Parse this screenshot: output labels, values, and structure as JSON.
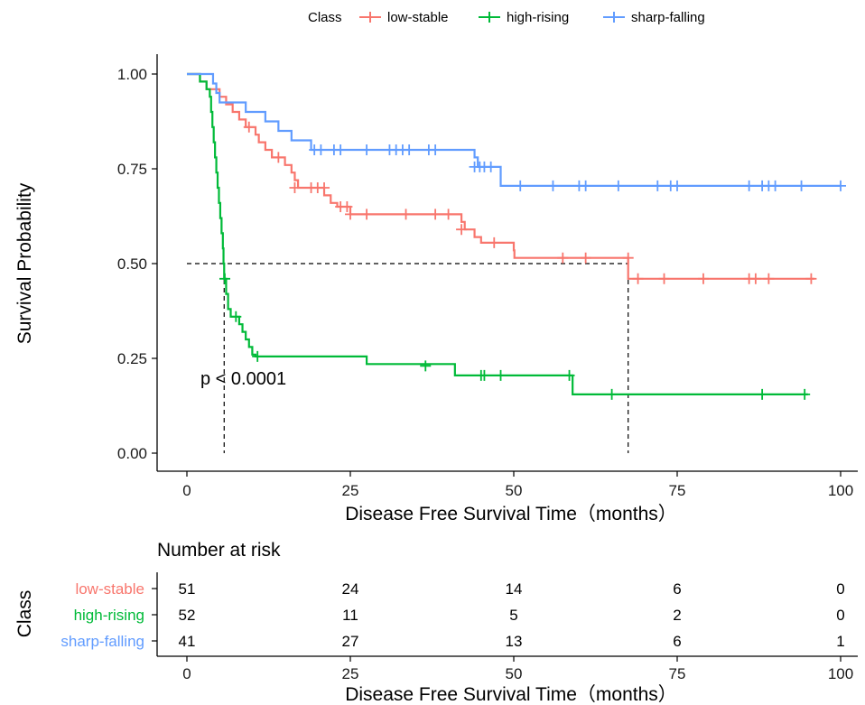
{
  "chart_data": {
    "type": "line",
    "subtype": "kaplan-meier",
    "legend": {
      "title": "Class",
      "position": "top",
      "entries": [
        "low-stable",
        "high-rising",
        "sharp-falling"
      ]
    },
    "xlabel": "Disease Free Survival Time（months）",
    "ylabel": "Survival Probability",
    "xlim": [
      0,
      100
    ],
    "ylim": [
      0,
      1
    ],
    "x_ticks": [
      "0",
      "25",
      "50",
      "75",
      "100"
    ],
    "y_ticks": [
      "0.00",
      "0.25",
      "0.50",
      "0.75",
      "1.00"
    ],
    "annotation": "p < 0.0001",
    "median_line": {
      "y": 0.5,
      "x_high_rising": 5.7,
      "x_low_stable": 67.5
    },
    "series": [
      {
        "name": "low-stable",
        "color": "#F8766D",
        "steps": [
          [
            0,
            1.0
          ],
          [
            2,
            0.98
          ],
          [
            3,
            0.96
          ],
          [
            5,
            0.94
          ],
          [
            6,
            0.92
          ],
          [
            7,
            0.9
          ],
          [
            8,
            0.88
          ],
          [
            9,
            0.86
          ],
          [
            10.5,
            0.84
          ],
          [
            11,
            0.82
          ],
          [
            12,
            0.8
          ],
          [
            13,
            0.78
          ],
          [
            15,
            0.76
          ],
          [
            16,
            0.74
          ],
          [
            16.5,
            0.72
          ],
          [
            17,
            0.7
          ],
          [
            21,
            0.68
          ],
          [
            22,
            0.66
          ],
          [
            23,
            0.65
          ],
          [
            25,
            0.63
          ],
          [
            42,
            0.61
          ],
          [
            42.5,
            0.59
          ],
          [
            44,
            0.57
          ],
          [
            45,
            0.555
          ],
          [
            50,
            0.535
          ],
          [
            50.1,
            0.515
          ],
          [
            67.5,
            0.46
          ],
          [
            96,
            0.46
          ]
        ],
        "censored": [
          [
            9.5,
            0.86
          ],
          [
            14,
            0.78
          ],
          [
            16.5,
            0.7
          ],
          [
            19,
            0.7
          ],
          [
            20,
            0.7
          ],
          [
            21,
            0.7
          ],
          [
            23.5,
            0.65
          ],
          [
            24.5,
            0.65
          ],
          [
            25,
            0.63
          ],
          [
            27.5,
            0.63
          ],
          [
            33.5,
            0.63
          ],
          [
            38,
            0.63
          ],
          [
            40,
            0.63
          ],
          [
            42,
            0.59
          ],
          [
            47,
            0.555
          ],
          [
            57.5,
            0.515
          ],
          [
            61,
            0.515
          ],
          [
            67.5,
            0.515
          ],
          [
            69,
            0.46
          ],
          [
            73,
            0.46
          ],
          [
            79,
            0.46
          ],
          [
            86,
            0.46
          ],
          [
            87,
            0.46
          ],
          [
            89,
            0.46
          ],
          [
            95.5,
            0.46
          ]
        ],
        "risk": [
          "51",
          "24",
          "14",
          "6",
          "0"
        ]
      },
      {
        "name": "high-rising",
        "color": "#00BA38",
        "steps": [
          [
            0,
            1.0
          ],
          [
            2,
            0.98
          ],
          [
            3,
            0.96
          ],
          [
            3.5,
            0.94
          ],
          [
            3.7,
            0.9
          ],
          [
            3.9,
            0.86
          ],
          [
            4.1,
            0.82
          ],
          [
            4.3,
            0.78
          ],
          [
            4.5,
            0.74
          ],
          [
            4.7,
            0.7
          ],
          [
            4.9,
            0.66
          ],
          [
            5.1,
            0.62
          ],
          [
            5.3,
            0.58
          ],
          [
            5.5,
            0.54
          ],
          [
            5.6,
            0.5
          ],
          [
            5.7,
            0.46
          ],
          [
            6,
            0.42
          ],
          [
            6.3,
            0.38
          ],
          [
            6.7,
            0.36
          ],
          [
            8,
            0.34
          ],
          [
            8.5,
            0.32
          ],
          [
            9,
            0.3
          ],
          [
            9.5,
            0.28
          ],
          [
            10,
            0.26
          ],
          [
            10.5,
            0.255
          ],
          [
            27.5,
            0.235
          ],
          [
            41,
            0.205
          ],
          [
            59,
            0.155
          ],
          [
            95,
            0.155
          ]
        ],
        "censored": [
          [
            5.8,
            0.46
          ],
          [
            7.5,
            0.36
          ],
          [
            10.8,
            0.255
          ],
          [
            36.5,
            0.23
          ],
          [
            45,
            0.205
          ],
          [
            45.5,
            0.205
          ],
          [
            48,
            0.205
          ],
          [
            58.5,
            0.205
          ],
          [
            65,
            0.155
          ],
          [
            88,
            0.155
          ],
          [
            94.5,
            0.155
          ]
        ],
        "risk": [
          "52",
          "11",
          "5",
          "2",
          "0"
        ]
      },
      {
        "name": "sharp-falling",
        "color": "#619CFF",
        "steps": [
          [
            0,
            1.0
          ],
          [
            4,
            0.975
          ],
          [
            4.5,
            0.95
          ],
          [
            5,
            0.925
          ],
          [
            9,
            0.9
          ],
          [
            12,
            0.875
          ],
          [
            14,
            0.85
          ],
          [
            16,
            0.825
          ],
          [
            19,
            0.8
          ],
          [
            44,
            0.78
          ],
          [
            44.5,
            0.755
          ],
          [
            48,
            0.705
          ],
          [
            100,
            0.705
          ]
        ],
        "censored": [
          [
            19.5,
            0.8
          ],
          [
            20.5,
            0.8
          ],
          [
            22.5,
            0.8
          ],
          [
            23.5,
            0.8
          ],
          [
            27.5,
            0.8
          ],
          [
            31,
            0.8
          ],
          [
            32,
            0.8
          ],
          [
            33,
            0.8
          ],
          [
            34,
            0.8
          ],
          [
            37,
            0.8
          ],
          [
            38,
            0.8
          ],
          [
            44,
            0.755
          ],
          [
            44.8,
            0.755
          ],
          [
            45.5,
            0.755
          ],
          [
            46.5,
            0.755
          ],
          [
            51,
            0.705
          ],
          [
            56,
            0.705
          ],
          [
            60,
            0.705
          ],
          [
            61,
            0.705
          ],
          [
            66,
            0.705
          ],
          [
            72,
            0.705
          ],
          [
            74,
            0.705
          ],
          [
            75,
            0.705
          ],
          [
            86,
            0.705
          ],
          [
            88,
            0.705
          ],
          [
            89,
            0.705
          ],
          [
            90,
            0.705
          ],
          [
            94,
            0.705
          ],
          [
            100,
            0.705
          ]
        ],
        "risk": [
          "41",
          "27",
          "13",
          "6",
          "1"
        ]
      }
    ],
    "risk_table": {
      "title": "Number at risk",
      "ylabel": "Class",
      "xlabel": "Disease Free Survival Time（months）",
      "x_ticks": [
        "0",
        "25",
        "50",
        "75",
        "100"
      ]
    }
  }
}
